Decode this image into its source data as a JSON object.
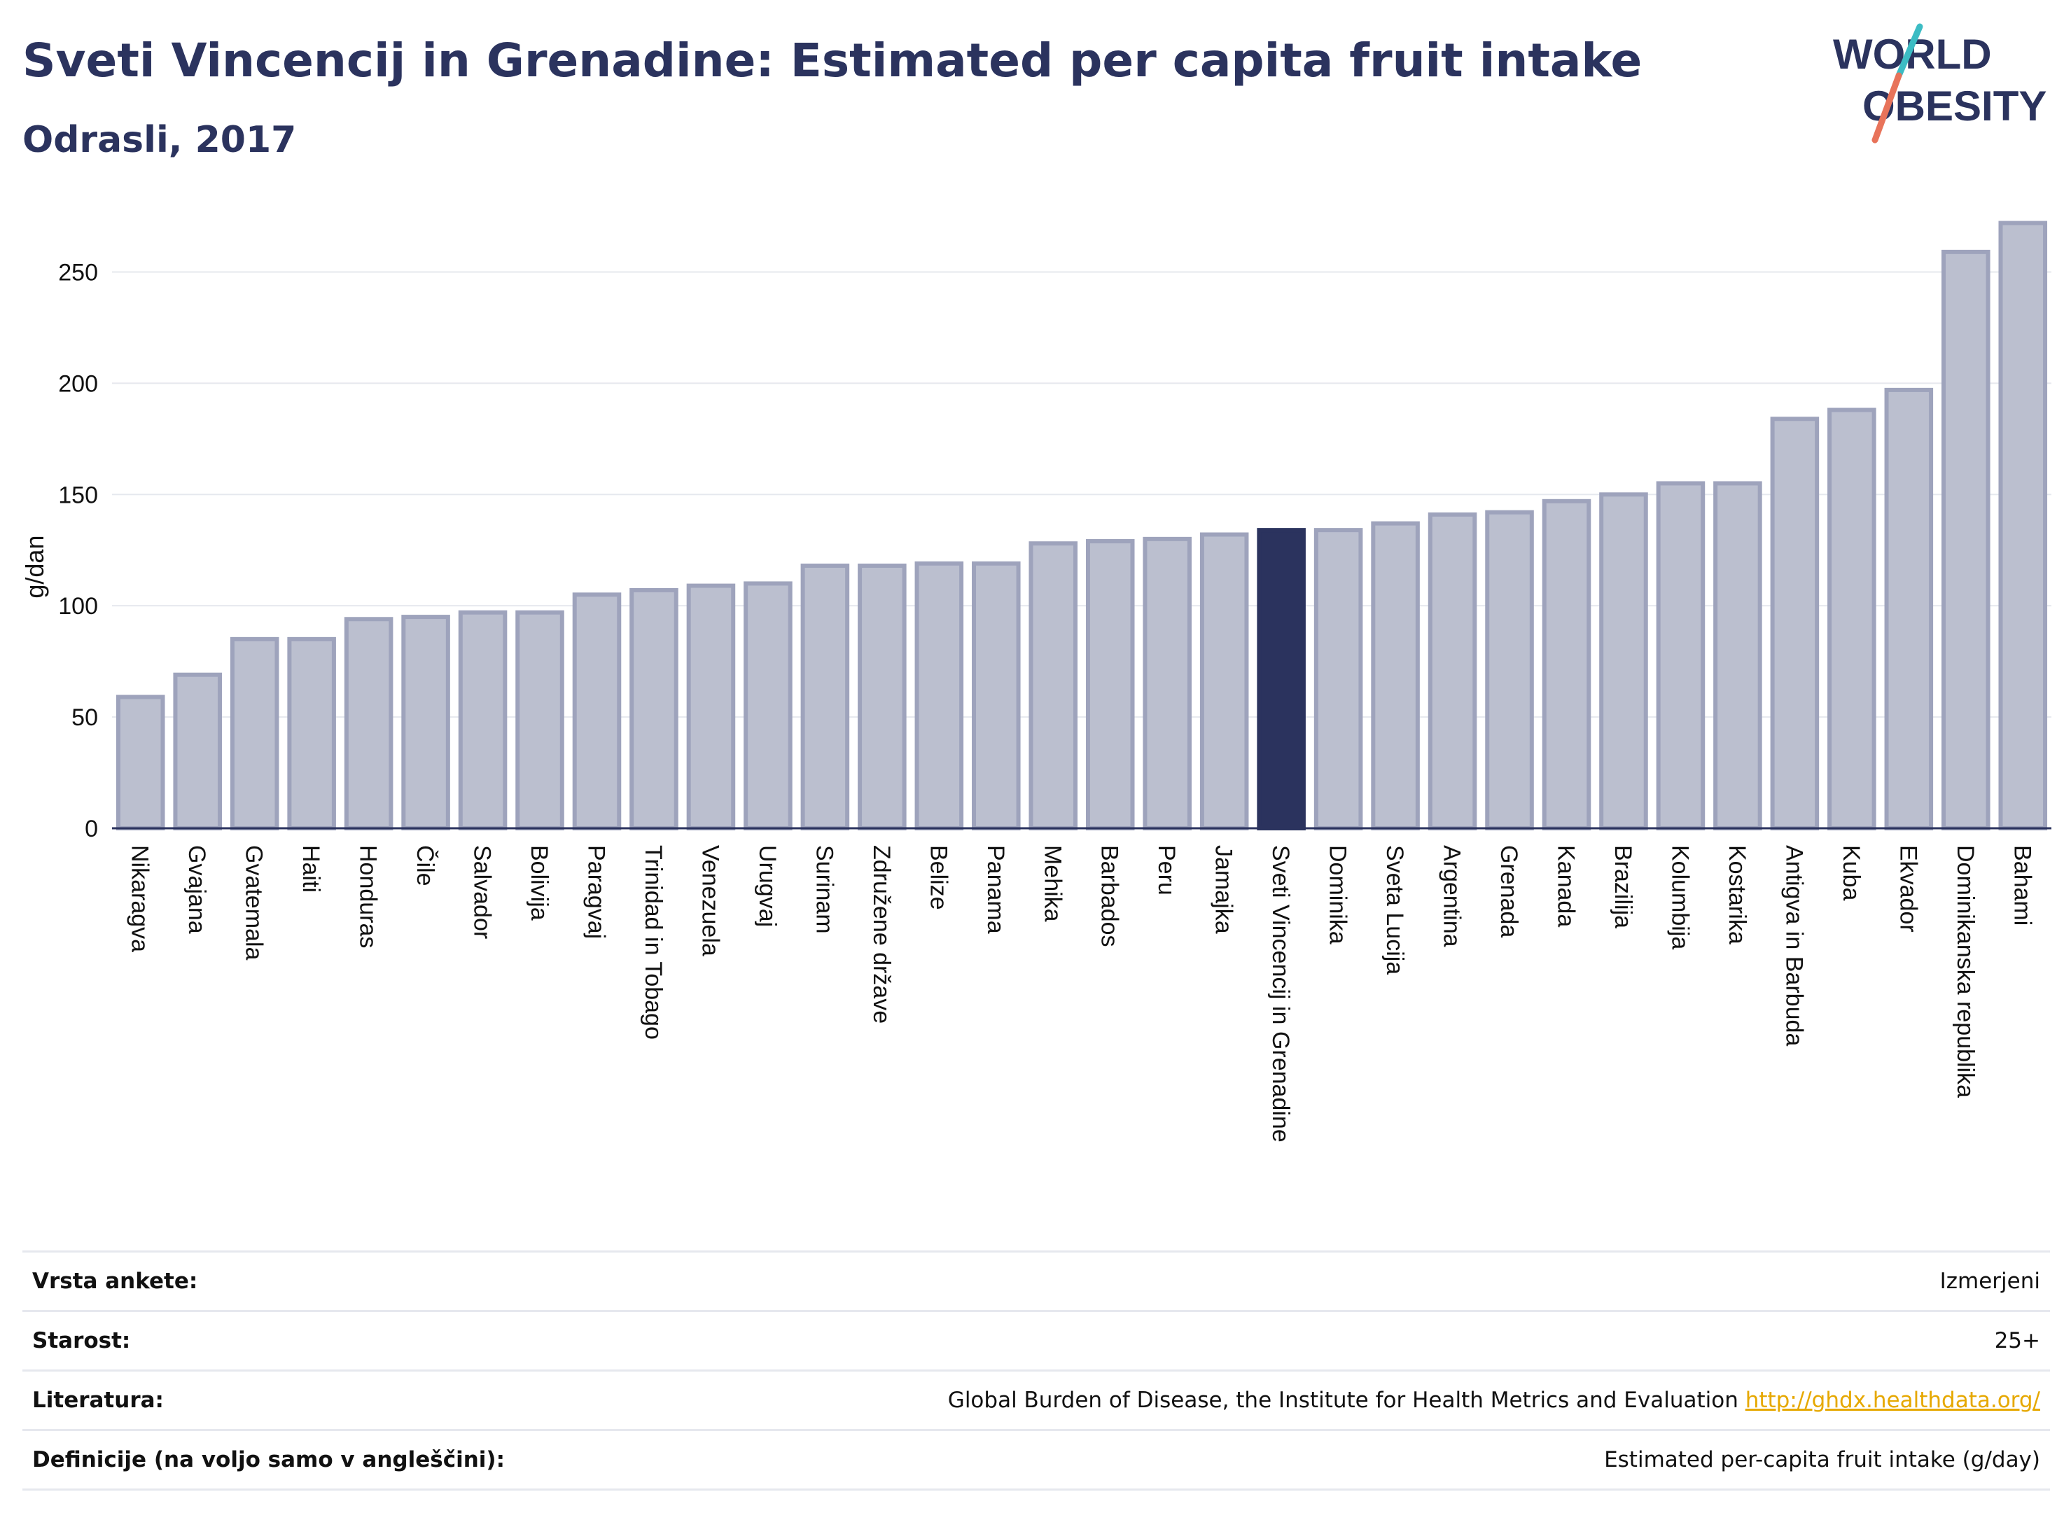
{
  "header": {
    "title": "Sveti Vincencij in Grenadine: Estimated per capita fruit intake",
    "subtitle": "Odrasli, 2017"
  },
  "logo": {
    "line1": "WORLD",
    "line2": "OBESITY"
  },
  "colors": {
    "title": "#2b335e",
    "bar_default": "#bbbfcf",
    "bar_default_stroke": "#9ea3bc",
    "bar_highlight": "#2b335e",
    "gridline": "#e6e8ee",
    "link": "#e6a800",
    "logo_teal": "#3cbcc4",
    "logo_coral": "#e8735a"
  },
  "chart_data": {
    "type": "bar",
    "title": "",
    "xlabel": "",
    "ylabel": "g/dan",
    "ylim": [
      0,
      275
    ],
    "yticks": [
      0,
      50,
      100,
      150,
      200,
      250
    ],
    "grid": true,
    "legend": "none",
    "highlight": "Sveti Vincencij in Grenadine",
    "categories": [
      "Nikaragva",
      "Gvajana",
      "Gvatemala",
      "Haiti",
      "Honduras",
      "Čile",
      "Salvador",
      "Bolivija",
      "Paragvaj",
      "Trinidad in Tobago",
      "Venezuela",
      "Urugvaj",
      "Surinam",
      "Združene države",
      "Belize",
      "Panama",
      "Mehika",
      "Barbados",
      "Peru",
      "Jamajka",
      "Sveti Vincencij in Grenadine",
      "Dominika",
      "Sveta Lucija",
      "Argentina",
      "Grenada",
      "Kanada",
      "Brazilija",
      "Kolumbija",
      "Kostarika",
      "Antigva in Barbuda",
      "Kuba",
      "Ekvador",
      "Dominikanska republika",
      "Bahami"
    ],
    "values": [
      59,
      69,
      85,
      85,
      94,
      95,
      97,
      97,
      105,
      107,
      109,
      110,
      118,
      118,
      119,
      119,
      128,
      129,
      130,
      132,
      134,
      134,
      137,
      141,
      142,
      147,
      150,
      155,
      155,
      184,
      188,
      197,
      259,
      272
    ]
  },
  "footer": {
    "rows": [
      {
        "label": "Vrsta ankete:",
        "value": "Izmerjeni"
      },
      {
        "label": "Starost:",
        "value": "25+"
      },
      {
        "label": "Literatura:",
        "value": "Global Burden of Disease, the Institute for Health Metrics and Evaluation",
        "link": "http://ghdx.healthdata.org/"
      },
      {
        "label": "Definicije (na voljo samo v angleščini):",
        "value": "Estimated per-capita fruit intake (g/day)"
      }
    ]
  }
}
